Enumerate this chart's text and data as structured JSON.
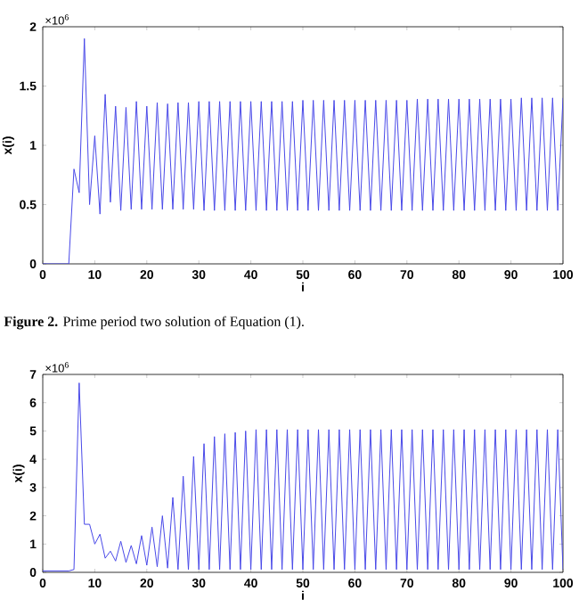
{
  "chart_data": [
    {
      "type": "line",
      "xlabel": "i",
      "ylabel": "x(i)",
      "color": "#4848e8",
      "annotations": [
        "×10$^{6}$",
        "**Figure 2.** Prime period two solution of Equation (1)."
      ],
      "xlim": [
        0,
        100
      ],
      "xticks": [
        0,
        10,
        20,
        30,
        40,
        50,
        60,
        70,
        80,
        90,
        100
      ],
      "ylim": [
        0,
        2
      ],
      "yticks": [
        0,
        0.5,
        1,
        1.5,
        2
      ],
      "x": [
        0,
        1,
        2,
        3,
        4,
        5,
        6,
        7,
        8,
        9,
        10,
        11,
        12,
        13,
        14,
        15,
        16,
        17,
        18,
        19,
        20,
        21,
        22,
        23,
        24,
        25,
        26,
        27,
        28,
        29,
        30,
        31,
        32,
        33,
        34,
        35,
        36,
        37,
        38,
        39,
        40,
        41,
        42,
        43,
        44,
        45,
        46,
        47,
        48,
        49,
        50,
        51,
        52,
        53,
        54,
        55,
        56,
        57,
        58,
        59,
        60,
        61,
        62,
        63,
        64,
        65,
        66,
        67,
        68,
        69,
        70,
        71,
        72,
        73,
        74,
        75,
        76,
        77,
        78,
        79,
        80,
        81,
        82,
        83,
        84,
        85,
        86,
        87,
        88,
        89,
        90,
        91,
        92,
        93,
        94,
        95,
        96,
        97,
        98,
        99,
        100
      ],
      "values": [
        0,
        0,
        0,
        0,
        0,
        0,
        0.8,
        0.6,
        1.9,
        0.5,
        1.08,
        0.42,
        1.43,
        0.52,
        1.33,
        0.45,
        1.32,
        0.46,
        1.37,
        0.46,
        1.33,
        0.46,
        1.36,
        0.46,
        1.35,
        0.46,
        1.36,
        0.46,
        1.36,
        0.46,
        1.37,
        0.45,
        1.37,
        0.45,
        1.37,
        0.45,
        1.37,
        0.45,
        1.37,
        0.45,
        1.37,
        0.45,
        1.37,
        0.45,
        1.37,
        0.45,
        1.37,
        0.45,
        1.37,
        0.45,
        1.38,
        0.45,
        1.38,
        0.45,
        1.38,
        0.45,
        1.38,
        0.45,
        1.38,
        0.45,
        1.38,
        0.45,
        1.38,
        0.45,
        1.38,
        0.45,
        1.38,
        0.45,
        1.38,
        0.45,
        1.38,
        0.45,
        1.39,
        0.45,
        1.39,
        0.45,
        1.39,
        0.45,
        1.39,
        0.45,
        1.39,
        0.45,
        1.39,
        0.45,
        1.39,
        0.45,
        1.39,
        0.45,
        1.39,
        0.45,
        1.39,
        0.45,
        1.4,
        0.45,
        1.4,
        0.45,
        1.4,
        0.45,
        1.4,
        0.45,
        1.4
      ]
    },
    {
      "type": "line",
      "xlabel": "i",
      "ylabel": "x(i)",
      "color": "#4848e8",
      "annotations": [
        "×10$^{6}$"
      ],
      "xlim": [
        0,
        100
      ],
      "xticks": [
        0,
        10,
        20,
        30,
        40,
        50,
        60,
        70,
        80,
        90,
        100
      ],
      "ylim": [
        0,
        7
      ],
      "yticks": [
        0,
        1,
        2,
        3,
        4,
        5,
        6,
        7
      ],
      "x": [
        0,
        1,
        2,
        3,
        4,
        5,
        6,
        7,
        8,
        9,
        10,
        11,
        12,
        13,
        14,
        15,
        16,
        17,
        18,
        19,
        20,
        21,
        22,
        23,
        24,
        25,
        26,
        27,
        28,
        29,
        30,
        31,
        32,
        33,
        34,
        35,
        36,
        37,
        38,
        39,
        40,
        41,
        42,
        43,
        44,
        45,
        46,
        47,
        48,
        49,
        50,
        51,
        52,
        53,
        54,
        55,
        56,
        57,
        58,
        59,
        60,
        61,
        62,
        63,
        64,
        65,
        66,
        67,
        68,
        69,
        70,
        71,
        72,
        73,
        74,
        75,
        76,
        77,
        78,
        79,
        80,
        81,
        82,
        83,
        84,
        85,
        86,
        87,
        88,
        89,
        90,
        91,
        92,
        93,
        94,
        95,
        96,
        97,
        98,
        99,
        100
      ],
      "values": [
        0.05,
        0.05,
        0.05,
        0.05,
        0.05,
        0.05,
        0.1,
        6.7,
        1.7,
        1.7,
        1.0,
        1.35,
        0.5,
        0.75,
        0.4,
        1.1,
        0.35,
        0.95,
        0.3,
        1.3,
        0.25,
        1.6,
        0.2,
        2.0,
        0.15,
        2.65,
        0.1,
        3.4,
        0.1,
        4.1,
        0.1,
        4.55,
        0.1,
        4.8,
        0.1,
        4.9,
        0.1,
        4.95,
        0.1,
        5.0,
        0.1,
        5.05,
        0.1,
        5.05,
        0.1,
        5.05,
        0.1,
        5.05,
        0.1,
        5.05,
        0.1,
        5.05,
        0.1,
        5.05,
        0.1,
        5.05,
        0.1,
        5.05,
        0.1,
        5.05,
        0.1,
        5.05,
        0.1,
        5.05,
        0.1,
        5.05,
        0.1,
        5.05,
        0.1,
        5.05,
        0.1,
        5.05,
        0.1,
        5.05,
        0.1,
        5.05,
        0.1,
        5.05,
        0.1,
        5.05,
        0.1,
        5.05,
        0.1,
        5.05,
        0.1,
        5.05,
        0.1,
        5.05,
        0.1,
        5.05,
        0.1,
        5.05,
        0.1,
        5.05,
        0.1,
        5.05,
        0.1,
        5.05,
        0.1,
        5.05,
        0.1
      ]
    }
  ]
}
